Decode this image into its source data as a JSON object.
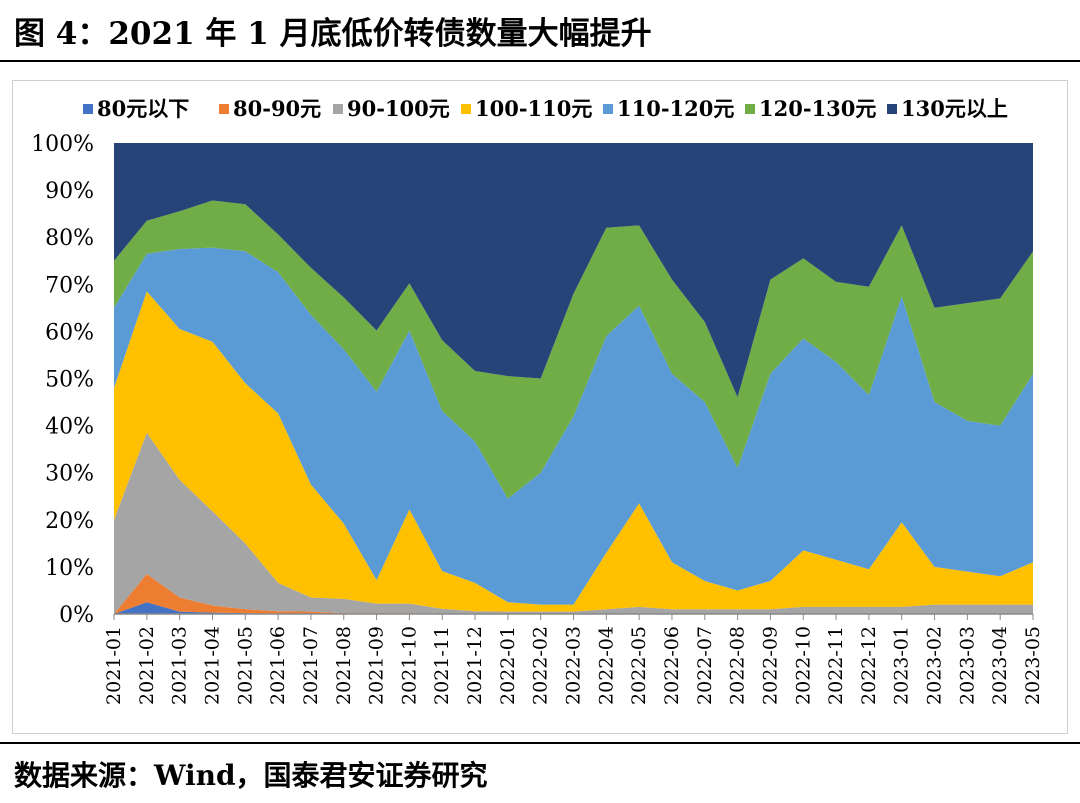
{
  "header": {
    "title": "图 4：2021 年 1 月底低价转债数量大幅提升"
  },
  "footer": {
    "source": "数据来源：Wind，国泰君安证券研究"
  },
  "chart_data": {
    "type": "area",
    "stacked": true,
    "percent": true,
    "ylim": [
      0,
      100
    ],
    "yticks": [
      "0%",
      "10%",
      "20%",
      "30%",
      "40%",
      "50%",
      "60%",
      "70%",
      "80%",
      "90%",
      "100%"
    ],
    "categories": [
      "2021-01",
      "2021-02",
      "2021-03",
      "2021-04",
      "2021-05",
      "2021-06",
      "2021-07",
      "2021-08",
      "2021-09",
      "2021-10",
      "2021-11",
      "2021-12",
      "2022-01",
      "2022-02",
      "2022-03",
      "2022-04",
      "2022-05",
      "2022-06",
      "2022-07",
      "2022-08",
      "2022-09",
      "2022-10",
      "2022-11",
      "2022-12",
      "2023-01",
      "2023-02",
      "2023-03",
      "2023-04",
      "2023-05"
    ],
    "legend_position": "top",
    "colors": {
      "80元以下": "#4472c4",
      "80-90元": "#ed7d31",
      "90-100元": "#a5a5a5",
      "100-110元": "#ffc000",
      "110-120元": "#5b9bd5",
      "120-130元": "#70ad47",
      "130元以上": "#264478"
    },
    "series": [
      {
        "name": "80元以下",
        "values": [
          0,
          2.5,
          0.5,
          0.3,
          0.2,
          0.1,
          0.1,
          0,
          0,
          0,
          0,
          0,
          0,
          0,
          0,
          0,
          0,
          0,
          0,
          0,
          0,
          0,
          0,
          0,
          0,
          0,
          0,
          0,
          0
        ]
      },
      {
        "name": "80-90元",
        "values": [
          0,
          6,
          3,
          1.5,
          0.8,
          0.5,
          0.4,
          0.2,
          0.2,
          0.2,
          0.1,
          0.1,
          0,
          0,
          0,
          0,
          0,
          0,
          0,
          0,
          0,
          0,
          0,
          0,
          0,
          0,
          0,
          0,
          0
        ]
      },
      {
        "name": "90-100元",
        "values": [
          20,
          30,
          25,
          20,
          14,
          6,
          3,
          3,
          2,
          2,
          1,
          0.5,
          0.5,
          0.5,
          0.5,
          1,
          1.5,
          1,
          1,
          1,
          1,
          1.5,
          1.5,
          1.5,
          1.5,
          2,
          2,
          2,
          2
        ]
      },
      {
        "name": "100-110元",
        "values": [
          28,
          30,
          32,
          36,
          34,
          36,
          24,
          16,
          5,
          20,
          8,
          6,
          2,
          1.5,
          1.5,
          12,
          22,
          10,
          6,
          4,
          6,
          12,
          10,
          8,
          18,
          8,
          7,
          6,
          9
        ]
      },
      {
        "name": "110-120元",
        "values": [
          17,
          8,
          17,
          20,
          28,
          30,
          36,
          37,
          40,
          38,
          34,
          30,
          22,
          28,
          40,
          46,
          42,
          40,
          38,
          26,
          44,
          45,
          42,
          37,
          48,
          35,
          32,
          32,
          40
        ]
      },
      {
        "name": "120-130元",
        "values": [
          10,
          7,
          8,
          10,
          10,
          8,
          10,
          11,
          13,
          10,
          15,
          15,
          26,
          20,
          26,
          23,
          17,
          20,
          17,
          15,
          20,
          17,
          17,
          23,
          15,
          20,
          25,
          27,
          26
        ]
      },
      {
        "name": "130元以上",
        "values": [
          25,
          16.5,
          14.5,
          12.2,
          13,
          19.4,
          26.5,
          32.8,
          39.8,
          29.8,
          41.9,
          48.4,
          49.5,
          50,
          32,
          18,
          17.5,
          29,
          38,
          54,
          29,
          24.5,
          29.5,
          30.5,
          17.5,
          35,
          34,
          33,
          23
        ]
      }
    ]
  }
}
